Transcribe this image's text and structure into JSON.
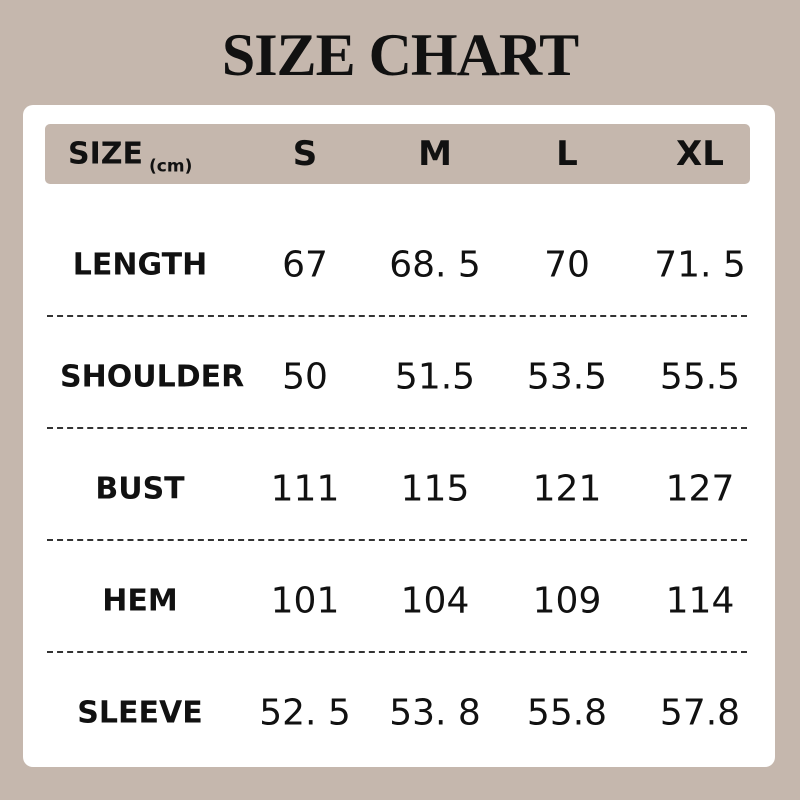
{
  "title": "SIZE CHART",
  "header": {
    "label": "SIZE",
    "unit": "(cm)",
    "sizes": [
      "S",
      "M",
      "L",
      "XL"
    ]
  },
  "rows": [
    {
      "label": "LENGTH",
      "values": [
        "67",
        "68. 5",
        "70",
        "71. 5"
      ]
    },
    {
      "label": "SHOULDER",
      "values": [
        "50",
        "51.5",
        "53.5",
        "55.5"
      ]
    },
    {
      "label": "BUST",
      "values": [
        "111",
        "115",
        "121",
        "127"
      ]
    },
    {
      "label": "HEM",
      "values": [
        "101",
        "104",
        "109",
        "114"
      ]
    },
    {
      "label": "SLEEVE",
      "values": [
        "52. 5",
        "53. 8",
        "55.8",
        "57.8"
      ]
    }
  ],
  "colors": {
    "background": "#c5b7ad",
    "card": "#ffffff",
    "text": "#111111"
  }
}
